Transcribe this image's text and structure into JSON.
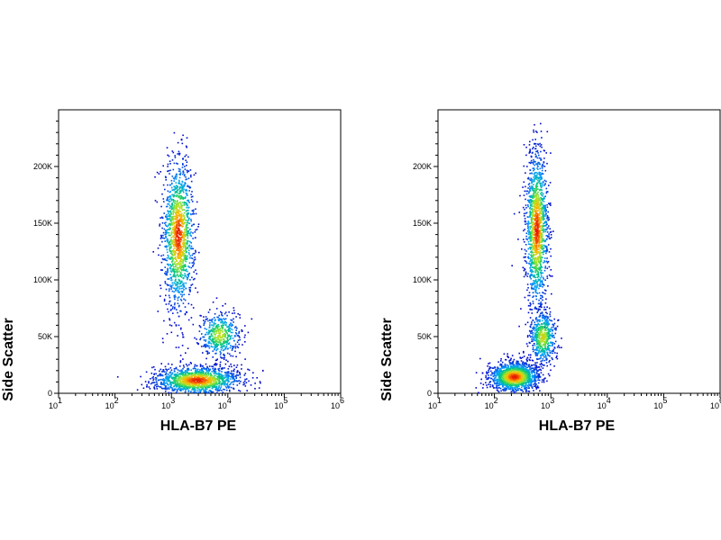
{
  "chart_data": [
    {
      "type": "scatter",
      "style": "density-colored flow cytometry dot plot",
      "xlabel": "HLA-B7 PE",
      "ylabel": "Side Scatter",
      "x_scale": "log",
      "xlim": [
        10,
        1000000
      ],
      "ylim": [
        0,
        250000
      ],
      "x_ticks": [
        {
          "value": 10,
          "base": "10",
          "exp": "1"
        },
        {
          "value": 100,
          "base": "10",
          "exp": "2"
        },
        {
          "value": 1000,
          "base": "10",
          "exp": "3"
        },
        {
          "value": 10000,
          "base": "10",
          "exp": "4"
        },
        {
          "value": 100000,
          "base": "10",
          "exp": "5"
        },
        {
          "value": 1000000,
          "base": "10",
          "exp": "6"
        }
      ],
      "y_ticks": [
        {
          "value": 0,
          "label": "0"
        },
        {
          "value": 50000,
          "label": "50K"
        },
        {
          "value": 100000,
          "label": "100K"
        },
        {
          "value": 150000,
          "label": "150K"
        },
        {
          "value": 200000,
          "label": "200K"
        }
      ],
      "populations": [
        {
          "x_center": 1300,
          "y_center": 140000,
          "x_spread_log": 0.14,
          "y_spread": 33000,
          "density": 1.0
        },
        {
          "x_center": 7000,
          "y_center": 52000,
          "x_spread_log": 0.18,
          "y_spread": 10000,
          "density": 0.35
        },
        {
          "x_center": 2800,
          "y_center": 12000,
          "x_spread_log": 0.38,
          "y_spread": 6000,
          "density": 1.0
        }
      ]
    },
    {
      "type": "scatter",
      "style": "density-colored flow cytometry dot plot",
      "xlabel": "HLA-B7 PE",
      "ylabel": "Side Scatter",
      "x_scale": "log",
      "xlim": [
        10,
        1000000
      ],
      "ylim": [
        0,
        250000
      ],
      "x_ticks": [
        {
          "value": 10,
          "base": "10",
          "exp": "1"
        },
        {
          "value": 100,
          "base": "10",
          "exp": "2"
        },
        {
          "value": 1000,
          "base": "10",
          "exp": "3"
        },
        {
          "value": 10000,
          "base": "10",
          "exp": "4"
        },
        {
          "value": 100000,
          "base": "10",
          "exp": "5"
        },
        {
          "value": 1000000,
          "base": "10",
          "exp": "6"
        }
      ],
      "y_ticks": [
        {
          "value": 0,
          "label": "0"
        },
        {
          "value": 50000,
          "label": "50K"
        },
        {
          "value": 100000,
          "label": "100K"
        },
        {
          "value": 150000,
          "label": "150K"
        },
        {
          "value": 200000,
          "label": "200K"
        }
      ],
      "populations": [
        {
          "x_center": 550,
          "y_center": 145000,
          "x_spread_log": 0.1,
          "y_spread": 35000,
          "density": 1.0
        },
        {
          "x_center": 700,
          "y_center": 50000,
          "x_spread_log": 0.12,
          "y_spread": 12000,
          "density": 0.4
        },
        {
          "x_center": 220,
          "y_center": 15000,
          "x_spread_log": 0.22,
          "y_spread": 6500,
          "density": 1.0
        }
      ]
    }
  ]
}
